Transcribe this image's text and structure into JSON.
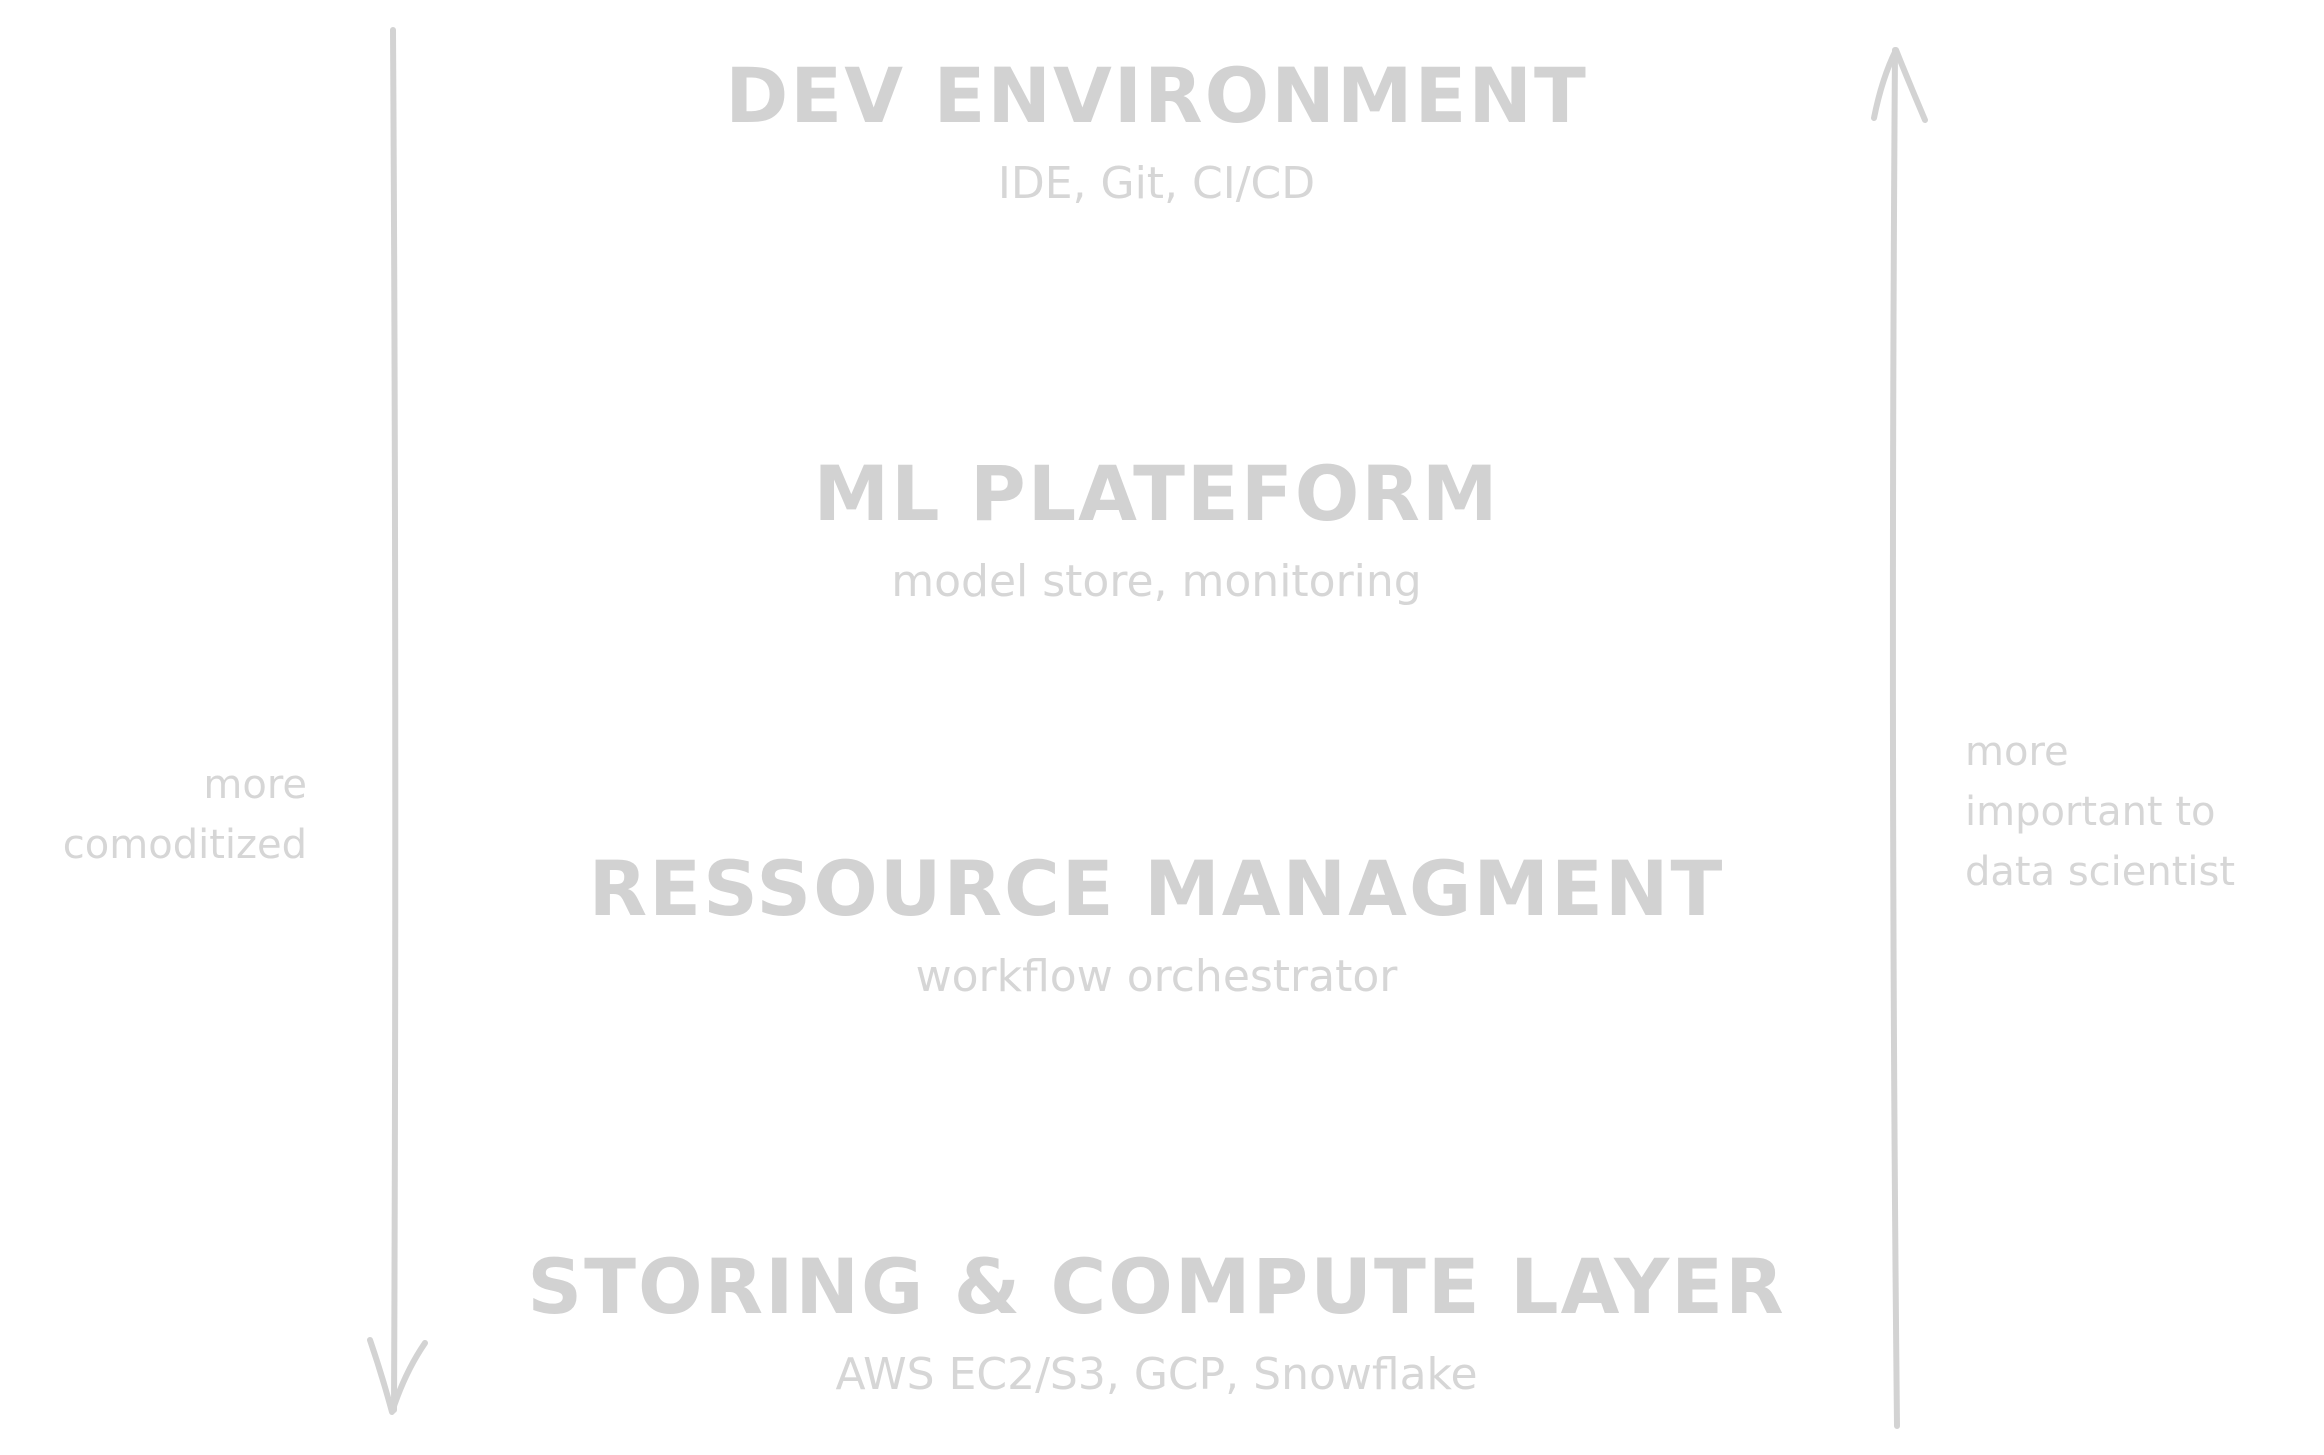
{
  "layers": [
    {
      "title": "DEV ENVIRONMENT",
      "subtitle": "IDE, Git, CI/CD"
    },
    {
      "title": "ML PLATEFORM",
      "subtitle": "model store, monitoring"
    },
    {
      "title": "RESSOURCE MANAGMENT",
      "subtitle": "workflow orchestrator"
    },
    {
      "title": "STORING & COMPUTE LAYER",
      "subtitle": "AWS EC2/S3, GCP, Snowflake"
    }
  ],
  "left_axis": {
    "direction": "down",
    "note_lines": [
      "more",
      "comoditized"
    ]
  },
  "right_axis": {
    "direction": "up",
    "note_lines": [
      "more",
      "important to",
      "data scientist"
    ]
  },
  "colors": {
    "ink": "#d3d3d3",
    "background": "#ffffff"
  }
}
